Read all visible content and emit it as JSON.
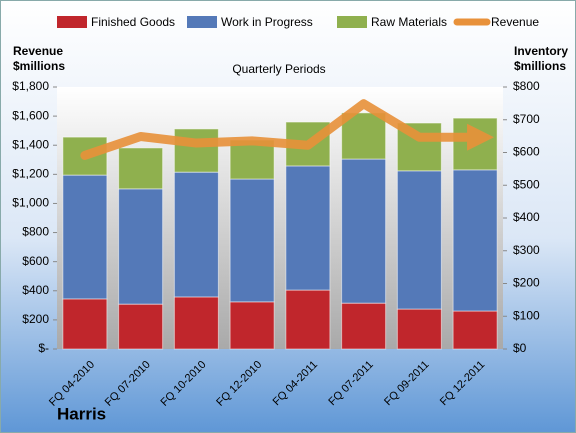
{
  "chart_data": {
    "type": "bar",
    "stacked": true,
    "title": "Quarterly Periods",
    "y_axis_title": [
      "Revenue",
      "$millions"
    ],
    "y2_axis_title": [
      "Inventory",
      "$millions"
    ],
    "footer": "Harris",
    "categories": [
      "FQ 04-2010",
      "FQ 07-2010",
      "FQ 10-2010",
      "FQ 12-2010",
      "FQ 04-2011",
      "FQ 07-2011",
      "FQ 09-2011",
      "FQ 12-2011"
    ],
    "series": [
      {
        "name": "Finished Goods",
        "type": "bar",
        "axis": "y2",
        "color": "#c0262c",
        "values": [
          153,
          137,
          159,
          144,
          180,
          140,
          122,
          116
        ]
      },
      {
        "name": "Work in Progress",
        "type": "bar",
        "axis": "y2",
        "color": "#5479b8",
        "values": [
          378,
          352,
          381,
          375,
          379,
          440,
          422,
          431
        ]
      },
      {
        "name": "Raw Materials",
        "type": "bar",
        "axis": "y2",
        "color": "#8fb04e",
        "values": [
          116,
          125,
          132,
          119,
          134,
          141,
          146,
          158
        ]
      },
      {
        "name": "Revenue",
        "type": "line",
        "axis": "y",
        "color": "#e8913a",
        "values": [
          1330,
          1460,
          1415,
          1430,
          1400,
          1685,
          1455,
          1455
        ]
      }
    ],
    "ylim": [
      0,
      1800
    ],
    "yticks": [
      {
        "value": 0,
        "label": "$-"
      },
      {
        "value": 200,
        "label": "$200"
      },
      {
        "value": 400,
        "label": "$400"
      },
      {
        "value": 600,
        "label": "$600"
      },
      {
        "value": 800,
        "label": "$800"
      },
      {
        "value": 1000,
        "label": "$1,000"
      },
      {
        "value": 1200,
        "label": "$1,200"
      },
      {
        "value": 1400,
        "label": "$1,400"
      },
      {
        "value": 1600,
        "label": "$1,600"
      },
      {
        "value": 1800,
        "label": "$1,800"
      }
    ],
    "y2lim": [
      0,
      800
    ],
    "y2ticks": [
      {
        "value": 0,
        "label": "$0"
      },
      {
        "value": 100,
        "label": "$100"
      },
      {
        "value": 200,
        "label": "$200"
      },
      {
        "value": 300,
        "label": "$300"
      },
      {
        "value": 400,
        "label": "$400"
      },
      {
        "value": 500,
        "label": "$500"
      },
      {
        "value": 600,
        "label": "$600"
      },
      {
        "value": 700,
        "label": "$700"
      },
      {
        "value": 800,
        "label": "$800"
      }
    ],
    "legend": "top"
  }
}
